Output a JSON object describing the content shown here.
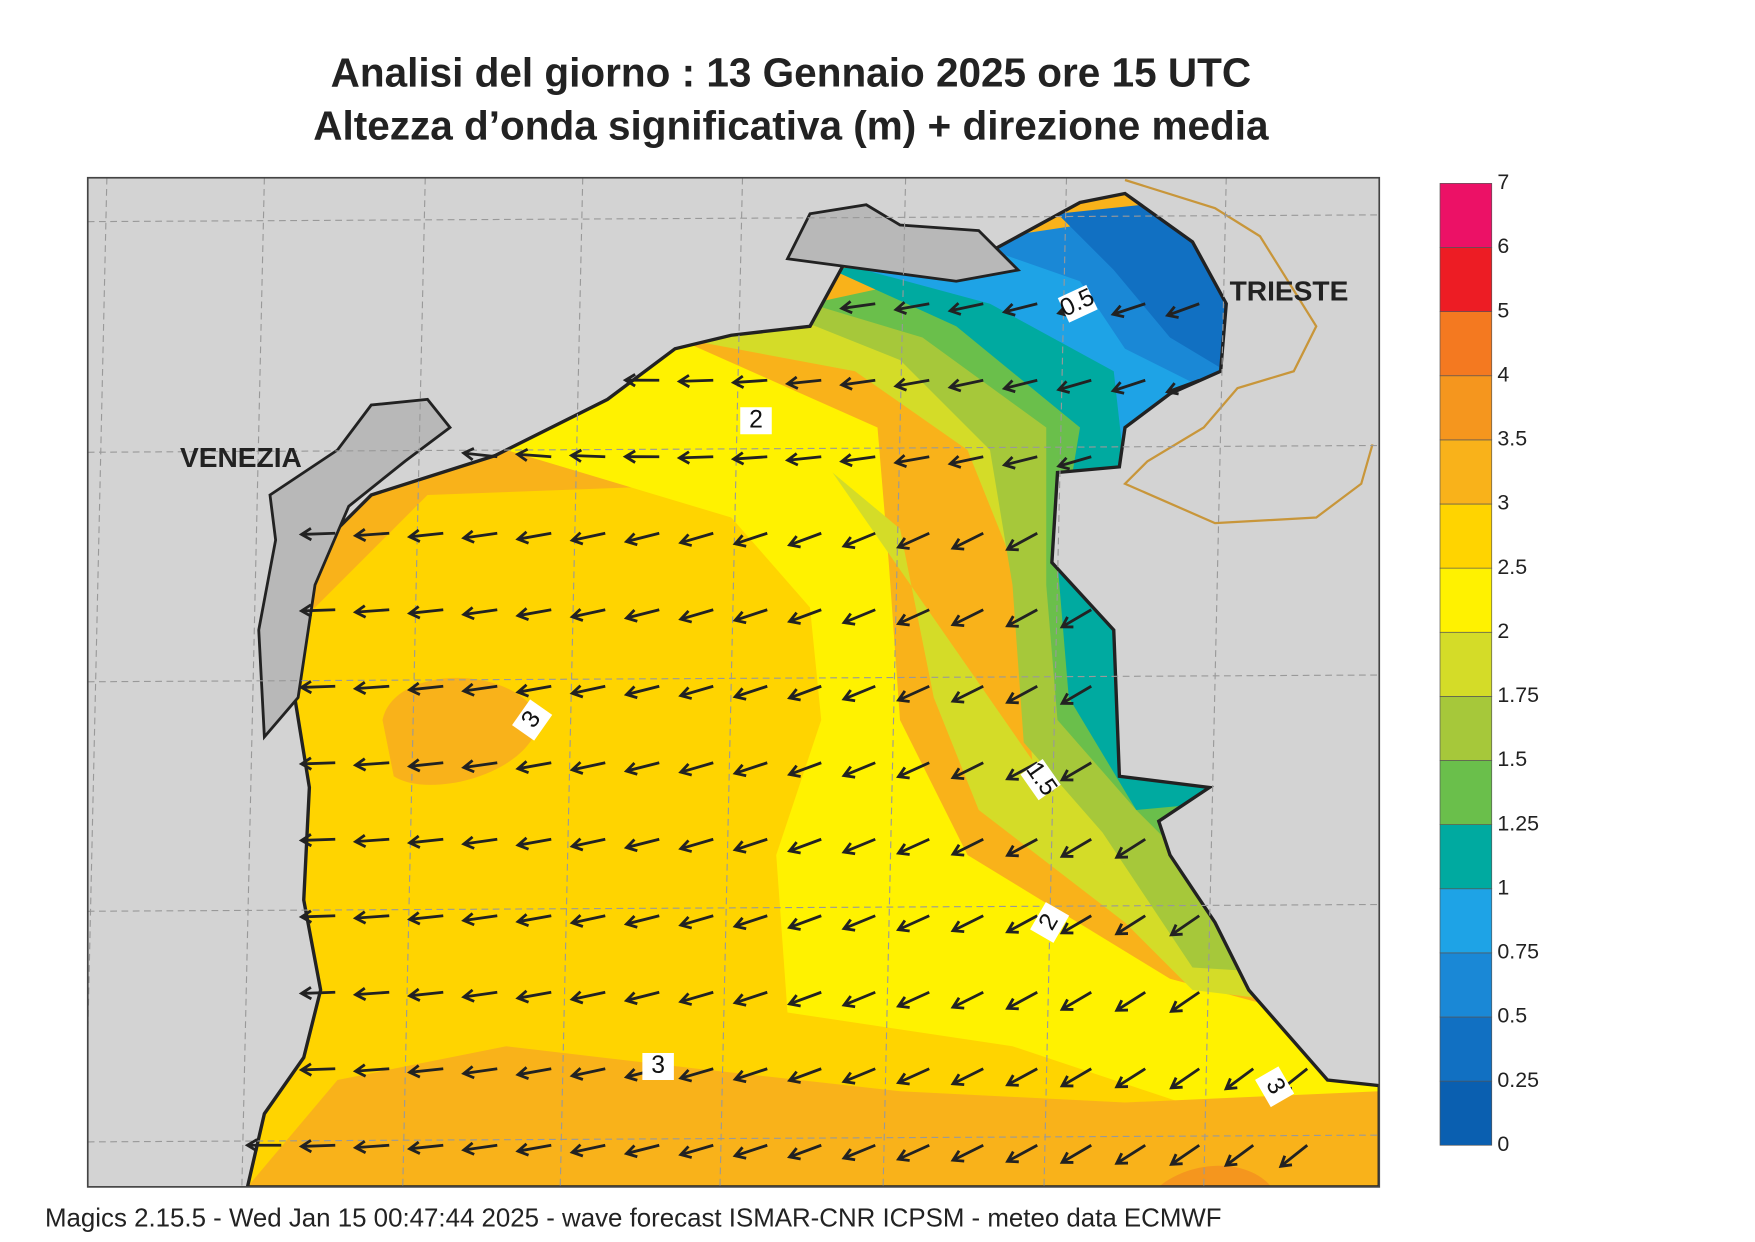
{
  "header": {
    "title": "Analisi del giorno :  13  Gennaio  2025   ore 15 UTC",
    "subtitle": "Altezza d’onda significativa (m) + direzione media"
  },
  "map": {
    "places": [
      "VENEZIA",
      "TRIESTE"
    ],
    "contour_labels": [
      "0.5",
      "2",
      "3",
      "1.5",
      "2",
      "3",
      "3"
    ]
  },
  "colorbar": {
    "ticks": [
      0,
      0.25,
      0.5,
      0.75,
      1,
      1.25,
      1.5,
      1.75,
      2,
      2.5,
      3,
      3.5,
      4,
      5,
      6,
      7
    ],
    "colors": [
      "#0a5fb0",
      "#1170c2",
      "#1a88d6",
      "#1ea3e6",
      "#00aaa0",
      "#6abf4b",
      "#a6c83a",
      "#d4dc28",
      "#fff200",
      "#ffd400",
      "#f9b21a",
      "#f5961e",
      "#f47920",
      "#ed1c24",
      "#ec1166"
    ]
  },
  "footer": "Magics 2.15.5 - Wed Jan 15 00:47:44 2025 - wave forecast  ISMAR-CNR  ICPSM - meteo data   ECMWF"
}
